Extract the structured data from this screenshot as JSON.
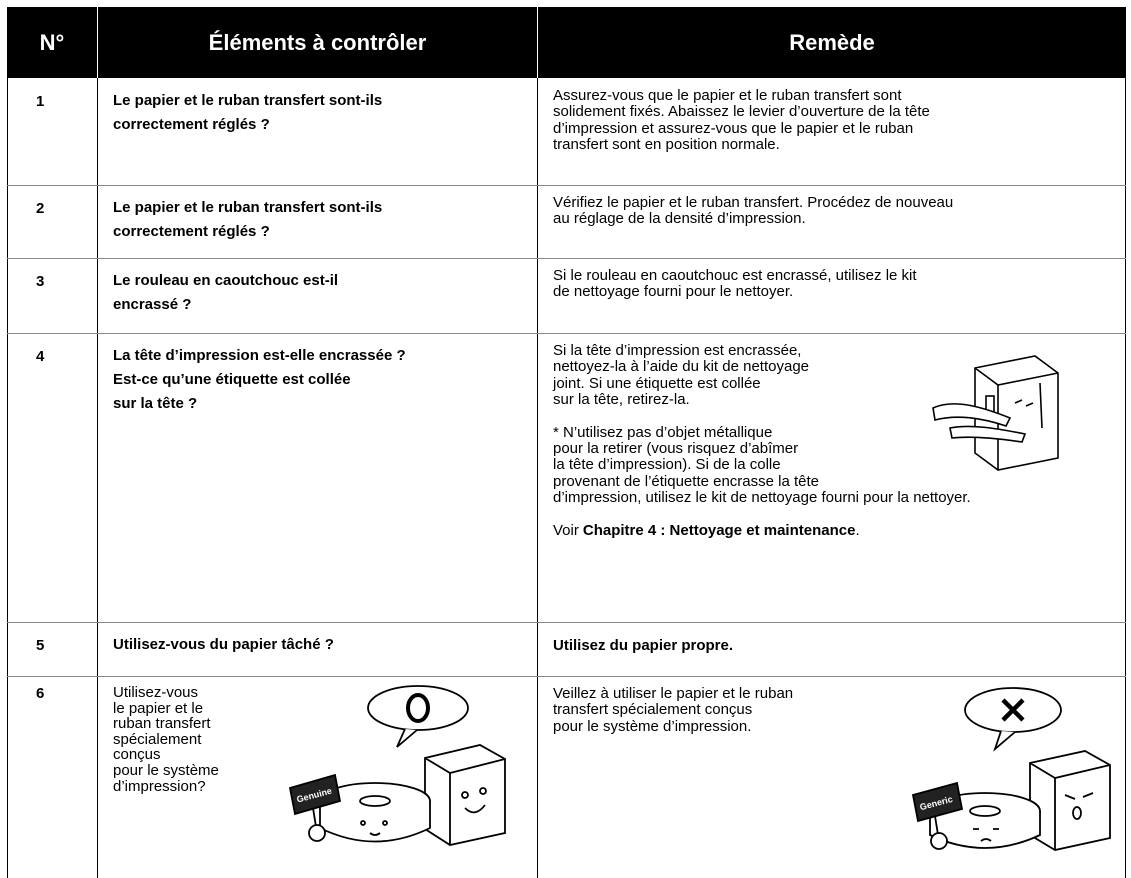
{
  "table": {
    "header": [
      "N°",
      "Éléments à contrôler",
      "Remède"
    ],
    "rows": [
      {
        "number": "1",
        "check": [
          "Le papier et le ruban transfert sont-ils",
          "correctement réglés ?"
        ],
        "remedy": [
          [
            "Assurez-vous que le papier et le ruban transfert sont",
            "solidement fixés. Abaissez le levier d’ouverture de la tête",
            "d’impression et assurez-vous que le papier et le ruban",
            "transfert sont en position normale."
          ]
        ]
      },
      {
        "number": "2",
        "check": [
          "Le papier et le ruban transfert sont-ils",
          "correctement réglés ?"
        ],
        "remedy": [
          [
            "Vérifiez le papier et le ruban transfert. Procédez de nouveau",
            "au réglage de la densité d’impression."
          ]
        ]
      },
      {
        "number": "3",
        "check": [
          "Le rouleau en caoutchouc est-il",
          "encrassé ?"
        ],
        "remedy": [
          [
            "Si le rouleau en caoutchouc est encrassé, utilisez le kit",
            "de nettoyage fourni pour le nettoyer."
          ]
        ]
      },
      {
        "number": "4",
        "check": [
          "La tête d’impression est-elle encrassée ?",
          "Est-ce qu’une étiquette est collée",
          "sur la tête ?"
        ],
        "remedy": [
          [
            "Si la tête d’impression est encrassée,",
            "nettoyez-la à l’aide du kit de nettoyage",
            "joint. Si une étiquette est collée",
            "sur la tête, retirez-la."
          ],
          [
            "* N’utilisez pas d’objet métallique",
            "pour la retirer (vous risquez d’abîmer",
            "la tête d’impression). Si de la colle",
            "provenant de l’étiquette encrasse la tête",
            "d’impression, utilisez le kit de nettoyage fourni pour la nettoyer."
          ]
        ],
        "see_also": {
          "prefix": "Voir",
          "reference": "Chapitre 4 : Nettoyage et maintenance",
          "suffix": "."
        }
      },
      {
        "number": "5",
        "check": [
          "Utilisez-vous du papier tâché ?"
        ],
        "remedy": [
          [
            "Utilisez du papier propre."
          ]
        ],
        "remedy_bold": true
      },
      {
        "number": "6",
        "check": [
          "Utilisez-vous",
          "le papier et le",
          "ruban transfert",
          "spécialement",
          "conçus",
          "pour le système",
          "d’impression?"
        ],
        "check_bold": false,
        "remedy": [
          [
            "Veillez à utiliser le papier et le ruban",
            "transfert spécialement conçus",
            "pour le système d’impression."
          ]
        ],
        "check_image_label": "Genuine",
        "remedy_image_label": "Generic"
      }
    ]
  }
}
